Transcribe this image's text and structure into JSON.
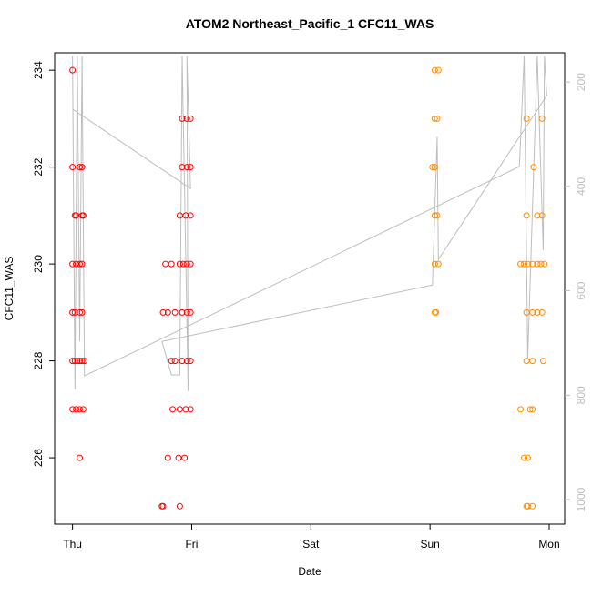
{
  "chart_data": {
    "type": "scatter",
    "title": "ATOM2 Northeast_Pacific_1 CFC11_WAS",
    "xlabel": "Date",
    "ylabel": "CFC11_WAS",
    "xlim": [
      -0.15,
      4.13
    ],
    "xticks": [
      {
        "value": 0,
        "label": "Thu"
      },
      {
        "value": 1,
        "label": "Fri"
      },
      {
        "value": 2,
        "label": "Sat"
      },
      {
        "value": 3,
        "label": "Sun"
      },
      {
        "value": 4,
        "label": "Mon"
      }
    ],
    "ylim": [
      224.63,
      234.36
    ],
    "yticks": [
      226,
      228,
      230,
      232,
      234
    ],
    "y2lim": [
      1047,
      144
    ],
    "y2ticks": [
      200,
      400,
      600,
      800,
      1000
    ],
    "y2color": "#bebebe",
    "series": [
      {
        "type": "scatter",
        "color": "#ff0000",
        "x": [
          0.0,
          0.0,
          0.06,
          0.08,
          0.02,
          0.03,
          0.08,
          0.09,
          0.0,
          0.03,
          0.06,
          0.08,
          0.0,
          0.02,
          0.06,
          0.08,
          0.0,
          0.02,
          0.04,
          0.06,
          0.08,
          0.1,
          0.0,
          0.03,
          0.06,
          0.09,
          0.06,
          0.75,
          0.76,
          0.9,
          0.8,
          0.89,
          0.94,
          0.84,
          0.9,
          0.95,
          0.99,
          0.83,
          0.86,
          0.92,
          0.96,
          0.99,
          0.76,
          0.8,
          0.86,
          0.92,
          0.96,
          0.99,
          0.78,
          0.83,
          0.9,
          0.93,
          0.96,
          0.99,
          0.9,
          0.95,
          0.99,
          0.92,
          0.96,
          0.99,
          0.92,
          0.96,
          0.99
        ],
        "values": [
          234,
          232,
          232,
          232,
          231,
          231,
          231,
          231,
          230,
          230,
          230,
          230,
          229,
          229,
          229,
          229,
          228,
          228,
          228,
          228,
          228,
          228,
          227,
          227,
          227,
          227,
          226,
          225,
          225,
          225,
          226,
          226,
          226,
          227,
          227,
          227,
          227,
          228,
          228,
          228,
          228,
          228,
          229,
          229,
          229,
          229,
          229,
          229,
          230,
          230,
          230,
          230,
          230,
          230,
          231,
          231,
          231,
          232,
          232,
          232,
          233,
          233,
          233
        ]
      },
      {
        "type": "scatter",
        "color": "#ff8c00",
        "x": [
          3.04,
          3.07,
          3.04,
          3.06,
          3.02,
          3.04,
          3.04,
          3.06,
          3.04,
          3.07,
          3.04,
          3.05,
          3.81,
          3.94,
          3.87,
          3.81,
          3.9,
          3.94,
          3.76,
          3.79,
          3.82,
          3.86,
          3.9,
          3.93,
          3.96,
          3.81,
          3.86,
          3.9,
          3.94,
          3.81,
          3.86,
          3.95,
          3.76,
          3.84,
          3.86,
          3.79,
          3.82,
          3.81,
          3.82,
          3.86
        ],
        "values": [
          234,
          234,
          233,
          233,
          232,
          232,
          231,
          231,
          230,
          230,
          229,
          229,
          233,
          233,
          232,
          231,
          231,
          231,
          230,
          230,
          230,
          230,
          230,
          230,
          230,
          229,
          229,
          229,
          229,
          228,
          228,
          228,
          227,
          227,
          227,
          226,
          226,
          225,
          225,
          225
        ]
      },
      {
        "type": "line",
        "axis": "y2",
        "color": "#bebebe",
        "x": [
          0.0,
          0.99,
          0.96,
          0.97,
          0.92,
          0.9,
          0.83,
          0.75,
          3.02,
          3.06,
          3.07,
          3.98,
          3.96,
          3.95,
          3.9,
          3.82,
          3.79,
          3.75,
          0.1,
          0.08,
          0.06,
          0.04,
          0.02,
          0.0
        ],
        "values": [
          252,
          404,
          150,
          792,
          150,
          761,
          761,
          697,
          589,
          305,
          540,
          226,
          150,
          522,
          150,
          731,
          150,
          362,
          763,
          150,
          697,
          150,
          789,
          150
        ]
      }
    ]
  }
}
